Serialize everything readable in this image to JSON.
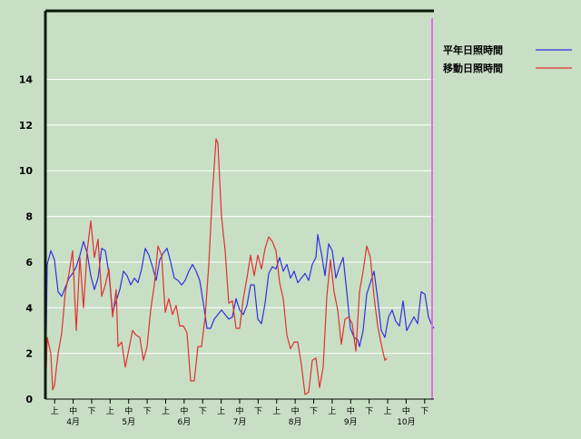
{
  "colors": {
    "background": "#c8dfc5",
    "grid": "#ffffff",
    "axis": "#000000",
    "marker_line": "#e070e0"
  },
  "chart_data": {
    "type": "line",
    "title": "",
    "xlabel": "",
    "ylabel": "",
    "ylim": [
      0,
      17
    ],
    "yticks": [
      0,
      2,
      4,
      6,
      8,
      10,
      12,
      14
    ],
    "grid": true,
    "legend_position": "top-right",
    "x_period_labels": [
      "上",
      "中",
      "下",
      "上",
      "中",
      "下",
      "上",
      "中",
      "下",
      "上",
      "中",
      "下",
      "上",
      "中",
      "下",
      "上",
      "中",
      "下",
      "上",
      "中",
      "下"
    ],
    "x_month_labels": [
      "4月",
      "5月",
      "6月",
      "7月",
      "8月",
      "9月",
      "10月"
    ],
    "x_count": 214,
    "marker_index": 213,
    "series": [
      {
        "name": "平年日照時間",
        "color": "#3030e0",
        "points": [
          [
            0,
            0
          ],
          [
            1,
            5.9
          ],
          [
            3,
            6.5
          ],
          [
            5,
            6.1
          ],
          [
            7,
            4.7
          ],
          [
            9,
            4.5
          ],
          [
            11,
            4.9
          ],
          [
            13,
            5.3
          ],
          [
            15,
            5.5
          ],
          [
            17,
            5.8
          ],
          [
            19,
            6.3
          ],
          [
            21,
            6.9
          ],
          [
            23,
            6.4
          ],
          [
            25,
            5.4
          ],
          [
            27,
            4.8
          ],
          [
            29,
            5.3
          ],
          [
            31,
            6.6
          ],
          [
            33,
            6.5
          ],
          [
            35,
            5.5
          ],
          [
            37,
            3.8
          ],
          [
            39,
            4.3
          ],
          [
            41,
            4.8
          ],
          [
            43,
            5.6
          ],
          [
            45,
            5.4
          ],
          [
            47,
            5.0
          ],
          [
            49,
            5.3
          ],
          [
            51,
            5.1
          ],
          [
            53,
            5.7
          ],
          [
            55,
            6.6
          ],
          [
            57,
            6.3
          ],
          [
            59,
            5.8
          ],
          [
            61,
            5.2
          ],
          [
            63,
            6.1
          ],
          [
            65,
            6.4
          ],
          [
            67,
            6.6
          ],
          [
            69,
            6.0
          ],
          [
            71,
            5.3
          ],
          [
            73,
            5.2
          ],
          [
            75,
            5.0
          ],
          [
            77,
            5.2
          ],
          [
            79,
            5.6
          ],
          [
            81,
            5.9
          ],
          [
            83,
            5.6
          ],
          [
            85,
            5.2
          ],
          [
            87,
            4.2
          ],
          [
            89,
            3.1
          ],
          [
            91,
            3.1
          ],
          [
            93,
            3.5
          ],
          [
            95,
            3.7
          ],
          [
            97,
            3.9
          ],
          [
            99,
            3.7
          ],
          [
            101,
            3.5
          ],
          [
            103,
            3.6
          ],
          [
            105,
            4.4
          ],
          [
            107,
            3.9
          ],
          [
            109,
            3.7
          ],
          [
            111,
            4.1
          ],
          [
            113,
            5.0
          ],
          [
            115,
            5.0
          ],
          [
            117,
            3.5
          ],
          [
            119,
            3.3
          ],
          [
            121,
            4.2
          ],
          [
            123,
            5.5
          ],
          [
            125,
            5.8
          ],
          [
            127,
            5.7
          ],
          [
            129,
            6.2
          ],
          [
            131,
            5.6
          ],
          [
            133,
            5.9
          ],
          [
            135,
            5.3
          ],
          [
            137,
            5.6
          ],
          [
            139,
            5.1
          ],
          [
            141,
            5.3
          ],
          [
            143,
            5.5
          ],
          [
            145,
            5.2
          ],
          [
            147,
            5.9
          ],
          [
            149,
            6.2
          ],
          [
            150,
            7.2
          ],
          [
            152,
            6.4
          ],
          [
            154,
            5.4
          ],
          [
            156,
            6.8
          ],
          [
            158,
            6.5
          ],
          [
            160,
            5.3
          ],
          [
            162,
            5.8
          ],
          [
            164,
            6.2
          ],
          [
            166,
            4.7
          ],
          [
            168,
            3.1
          ],
          [
            170,
            2.7
          ],
          [
            172,
            2.6
          ],
          [
            173,
            2.3
          ],
          [
            175,
            3.0
          ],
          [
            177,
            4.6
          ],
          [
            179,
            5.1
          ],
          [
            181,
            5.6
          ],
          [
            183,
            4.4
          ],
          [
            185,
            3.0
          ],
          [
            187,
            2.7
          ],
          [
            189,
            3.6
          ],
          [
            191,
            3.9
          ],
          [
            193,
            3.4
          ],
          [
            195,
            3.2
          ],
          [
            197,
            4.3
          ],
          [
            199,
            3.0
          ],
          [
            201,
            3.3
          ],
          [
            203,
            3.6
          ],
          [
            205,
            3.3
          ],
          [
            207,
            4.7
          ],
          [
            209,
            4.6
          ],
          [
            211,
            3.6
          ],
          [
            213,
            3.2
          ],
          [
            214,
            3.1
          ]
        ]
      },
      {
        "name": "移動日照時間",
        "color": "#e03030",
        "points": [
          [
            0,
            0
          ],
          [
            1,
            2.7
          ],
          [
            3,
            2.0
          ],
          [
            4,
            0.4
          ],
          [
            5,
            0.6
          ],
          [
            7,
            2.0
          ],
          [
            9,
            2.9
          ],
          [
            11,
            4.7
          ],
          [
            13,
            5.5
          ],
          [
            15,
            6.5
          ],
          [
            17,
            3.0
          ],
          [
            19,
            6.2
          ],
          [
            21,
            4.0
          ],
          [
            23,
            6.5
          ],
          [
            25,
            7.8
          ],
          [
            27,
            6.2
          ],
          [
            29,
            7.0
          ],
          [
            31,
            4.5
          ],
          [
            33,
            5.0
          ],
          [
            35,
            5.7
          ],
          [
            37,
            3.6
          ],
          [
            39,
            4.8
          ],
          [
            40,
            2.3
          ],
          [
            42,
            2.5
          ],
          [
            44,
            1.4
          ],
          [
            46,
            2.2
          ],
          [
            48,
            3.0
          ],
          [
            50,
            2.8
          ],
          [
            52,
            2.7
          ],
          [
            54,
            1.7
          ],
          [
            56,
            2.3
          ],
          [
            58,
            3.9
          ],
          [
            60,
            5.0
          ],
          [
            62,
            6.7
          ],
          [
            64,
            6.3
          ],
          [
            66,
            3.8
          ],
          [
            68,
            4.4
          ],
          [
            70,
            3.7
          ],
          [
            72,
            4.1
          ],
          [
            74,
            3.2
          ],
          [
            76,
            3.2
          ],
          [
            78,
            2.9
          ],
          [
            80,
            0.8
          ],
          [
            82,
            0.8
          ],
          [
            84,
            2.3
          ],
          [
            86,
            2.3
          ],
          [
            88,
            3.6
          ],
          [
            90,
            5.9
          ],
          [
            92,
            9.0
          ],
          [
            94,
            11.4
          ],
          [
            95,
            11.2
          ],
          [
            97,
            8.0
          ],
          [
            99,
            6.5
          ],
          [
            101,
            4.2
          ],
          [
            103,
            4.3
          ],
          [
            105,
            3.1
          ],
          [
            107,
            3.1
          ],
          [
            109,
            4.4
          ],
          [
            111,
            5.3
          ],
          [
            113,
            6.3
          ],
          [
            115,
            5.4
          ],
          [
            117,
            6.3
          ],
          [
            119,
            5.7
          ],
          [
            121,
            6.6
          ],
          [
            123,
            7.1
          ],
          [
            125,
            6.9
          ],
          [
            127,
            6.5
          ],
          [
            129,
            5.1
          ],
          [
            131,
            4.4
          ],
          [
            133,
            2.8
          ],
          [
            135,
            2.2
          ],
          [
            137,
            2.5
          ],
          [
            139,
            2.5
          ],
          [
            141,
            1.5
          ],
          [
            143,
            0.2
          ],
          [
            145,
            0.3
          ],
          [
            147,
            1.7
          ],
          [
            149,
            1.8
          ],
          [
            151,
            0.5
          ],
          [
            153,
            1.4
          ],
          [
            155,
            4.5
          ],
          [
            157,
            6.1
          ],
          [
            159,
            4.7
          ],
          [
            161,
            3.9
          ],
          [
            163,
            2.4
          ],
          [
            165,
            3.5
          ],
          [
            167,
            3.6
          ],
          [
            169,
            3.3
          ],
          [
            171,
            2.1
          ],
          [
            173,
            4.7
          ],
          [
            175,
            5.6
          ],
          [
            177,
            6.7
          ],
          [
            179,
            6.2
          ],
          [
            181,
            4.5
          ],
          [
            183,
            3.2
          ],
          [
            185,
            2.4
          ],
          [
            187,
            1.7
          ],
          [
            188,
            1.8
          ]
        ]
      }
    ]
  }
}
